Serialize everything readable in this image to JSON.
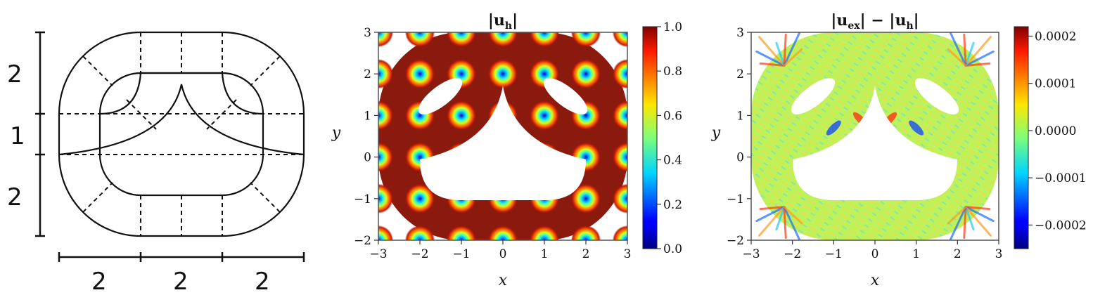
{
  "diagram": {
    "dim_vertical": [
      "2",
      "1",
      "2"
    ],
    "dim_horizontal": [
      "2",
      "2",
      "2"
    ]
  },
  "chart_data": [
    {
      "type": "heatmap",
      "title": "|u_h|",
      "title_parts": [
        "|",
        "u",
        "h",
        "|"
      ],
      "xlabel": "x",
      "ylabel": "y",
      "xlim": [
        -3,
        3
      ],
      "ylim": [
        -2,
        3
      ],
      "xticks": [
        -3,
        -2,
        -1,
        0,
        1,
        2,
        3
      ],
      "yticks": [
        -2,
        -1,
        0,
        1,
        2,
        3
      ],
      "xtick_labels": [
        "−3",
        "−2",
        "−1",
        "0",
        "1",
        "2",
        "3"
      ],
      "ytick_labels": [
        "−2",
        "−1",
        "0",
        "1",
        "2",
        "3"
      ],
      "colorbar": {
        "min": 0.0,
        "max": 1.0,
        "ticks": [
          0.0,
          0.2,
          0.4,
          0.6,
          0.8,
          1.0
        ],
        "tick_labels": [
          "0.0",
          "0.2",
          "0.4",
          "0.6",
          "0.8",
          "1.0"
        ],
        "colormap": "jet"
      },
      "pattern": "minima of |u_h| on integer lattice points inside domain",
      "colors": {
        "high": "#8b1a0e",
        "low": "#00008f"
      }
    },
    {
      "type": "heatmap",
      "title": "|u_ex| − |u_h|",
      "title_parts": [
        "|",
        "u",
        "ex",
        "|",
        " − ",
        "|",
        "u",
        "h",
        "|"
      ],
      "xlabel": "x",
      "ylabel": "y",
      "xlim": [
        -3,
        3
      ],
      "ylim": [
        -2,
        3
      ],
      "xticks": [
        -3,
        -2,
        -1,
        0,
        1,
        2,
        3
      ],
      "yticks": [
        -2,
        -1,
        0,
        1,
        2,
        3
      ],
      "xtick_labels": [
        "−3",
        "−2",
        "−1",
        "0",
        "1",
        "2",
        "3"
      ],
      "ytick_labels": [
        "−2",
        "−1",
        "0",
        "1",
        "2",
        "3"
      ],
      "colorbar": {
        "min": -0.00025,
        "max": 0.00022,
        "ticks": [
          -0.0002,
          -0.0001,
          0.0,
          0.0001,
          0.0002
        ],
        "tick_labels": [
          "−0.0002",
          "−0.0001",
          "0.0000",
          "0.0001",
          "0.0002"
        ],
        "colormap": "jet"
      },
      "colors": {
        "background": "#bff25a"
      }
    }
  ]
}
